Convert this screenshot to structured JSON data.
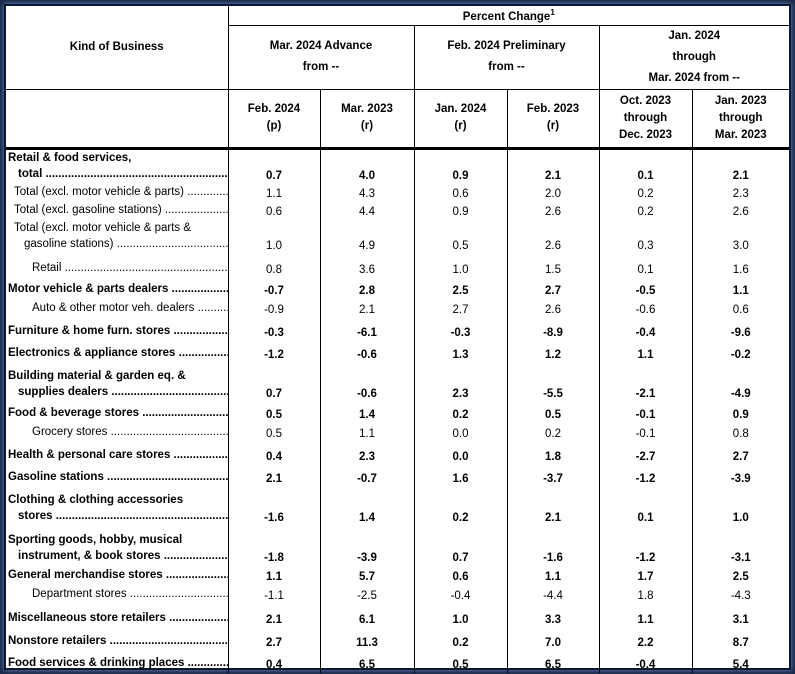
{
  "header": {
    "kind_of_business": "Kind of Business",
    "percent_change": "Percent Change",
    "footnote_mark": "1",
    "groups": [
      {
        "line1": "Mar. 2024 Advance",
        "line2": "from --"
      },
      {
        "line1": "Feb. 2024 Preliminary",
        "line2": "from --"
      },
      {
        "line1": "Jan. 2024",
        "line2": "through",
        "line3": "Mar. 2024 from --"
      }
    ],
    "columns": [
      {
        "line1": "Feb. 2024",
        "line2": "(p)"
      },
      {
        "line1": "Mar. 2023",
        "line2": "(r)"
      },
      {
        "line1": "Jan. 2024",
        "line2": "(r)"
      },
      {
        "line1": "Feb. 2023",
        "line2": "(r)"
      },
      {
        "line1": "Oct. 2023",
        "line2": "through",
        "line3": "Dec. 2023"
      },
      {
        "line1": "Jan. 2023",
        "line2": "through",
        "line3": "Mar. 2023"
      }
    ]
  },
  "rows": [
    {
      "lines": [
        "Retail & food services,",
        "total"
      ],
      "bold": true,
      "indent": 0,
      "values": [
        "0.7",
        "4.0",
        "0.9",
        "2.1",
        "0.1",
        "2.1"
      ]
    },
    {
      "lines": [
        "Total (excl. motor vehicle & parts)"
      ],
      "bold": false,
      "indent": 1,
      "values": [
        "1.1",
        "4.3",
        "0.6",
        "2.0",
        "0.2",
        "2.3"
      ]
    },
    {
      "lines": [
        "Total (excl. gasoline stations)"
      ],
      "bold": false,
      "indent": 1,
      "values": [
        "0.6",
        "4.4",
        "0.9",
        "2.6",
        "0.2",
        "2.6"
      ]
    },
    {
      "lines": [
        "Total (excl. motor vehicle & parts &",
        "gasoline stations)"
      ],
      "bold": false,
      "indent": 1,
      "values": [
        "1.0",
        "4.9",
        "0.5",
        "2.6",
        "0.3",
        "3.0"
      ]
    },
    {
      "lines": [
        "Retail"
      ],
      "bold": false,
      "indent": 3,
      "values": [
        "0.8",
        "3.6",
        "1.0",
        "1.5",
        "0.1",
        "1.6"
      ]
    },
    {
      "lines": [
        "Motor vehicle & parts dealers"
      ],
      "bold": true,
      "indent": 0,
      "values": [
        "-0.7",
        "2.8",
        "2.5",
        "2.7",
        "-0.5",
        "1.1"
      ]
    },
    {
      "lines": [
        "Auto & other motor veh. dealers"
      ],
      "bold": false,
      "indent": 3,
      "values": [
        "-0.9",
        "2.1",
        "2.7",
        "2.6",
        "-0.6",
        "0.6"
      ]
    },
    {
      "lines": [
        "Furniture & home furn. stores"
      ],
      "bold": true,
      "indent": 0,
      "values": [
        "-0.3",
        "-6.1",
        "-0.3",
        "-8.9",
        "-0.4",
        "-9.6"
      ]
    },
    {
      "lines": [
        "Electronics & appliance stores"
      ],
      "bold": true,
      "indent": 0,
      "values": [
        "-1.2",
        "-0.6",
        "1.3",
        "1.2",
        "1.1",
        "-0.2"
      ]
    },
    {
      "lines": [
        "Building material & garden eq. &",
        "supplies dealers"
      ],
      "bold": true,
      "indent": 0,
      "values": [
        "0.7",
        "-0.6",
        "2.3",
        "-5.5",
        "-2.1",
        "-4.9"
      ]
    },
    {
      "lines": [
        "Food & beverage stores"
      ],
      "bold": true,
      "indent": 0,
      "values": [
        "0.5",
        "1.4",
        "0.2",
        "0.5",
        "-0.1",
        "0.9"
      ]
    },
    {
      "lines": [
        "Grocery stores"
      ],
      "bold": false,
      "indent": 3,
      "values": [
        "0.5",
        "1.1",
        "0.0",
        "0.2",
        "-0.1",
        "0.8"
      ]
    },
    {
      "lines": [
        "Health & personal care stores"
      ],
      "bold": true,
      "indent": 0,
      "values": [
        "0.4",
        "2.3",
        "0.0",
        "1.8",
        "-2.7",
        "2.7"
      ]
    },
    {
      "lines": [
        "Gasoline stations"
      ],
      "bold": true,
      "indent": 0,
      "values": [
        "2.1",
        "-0.7",
        "1.6",
        "-3.7",
        "-1.2",
        "-3.9"
      ]
    },
    {
      "lines": [
        "Clothing & clothing accessories",
        "stores"
      ],
      "bold": true,
      "indent": 0,
      "values": [
        "-1.6",
        "1.4",
        "0.2",
        "2.1",
        "0.1",
        "1.0"
      ]
    },
    {
      "lines": [
        "Sporting goods, hobby, musical",
        "instrument, & book stores"
      ],
      "bold": true,
      "indent": 0,
      "values": [
        "-1.8",
        "-3.9",
        "0.7",
        "-1.6",
        "-1.2",
        "-3.1"
      ]
    },
    {
      "lines": [
        "General merchandise stores"
      ],
      "bold": true,
      "indent": 0,
      "values": [
        "1.1",
        "5.7",
        "0.6",
        "1.1",
        "1.7",
        "2.5"
      ]
    },
    {
      "lines": [
        "Department stores"
      ],
      "bold": false,
      "indent": 3,
      "values": [
        "-1.1",
        "-2.5",
        "-0.4",
        "-4.4",
        "1.8",
        "-4.3"
      ]
    },
    {
      "lines": [
        "Miscellaneous store retailers"
      ],
      "bold": true,
      "indent": 0,
      "values": [
        "2.1",
        "6.1",
        "1.0",
        "3.3",
        "1.1",
        "3.1"
      ]
    },
    {
      "lines": [
        "Nonstore retailers"
      ],
      "bold": true,
      "indent": 0,
      "values": [
        "2.7",
        "11.3",
        "0.2",
        "7.0",
        "2.2",
        "8.7"
      ]
    },
    {
      "lines": [
        "Food services & drinking places"
      ],
      "bold": true,
      "indent": 0,
      "values": [
        "0.4",
        "6.5",
        "0.5",
        "6.5",
        "-0.4",
        "5.4"
      ]
    }
  ]
}
